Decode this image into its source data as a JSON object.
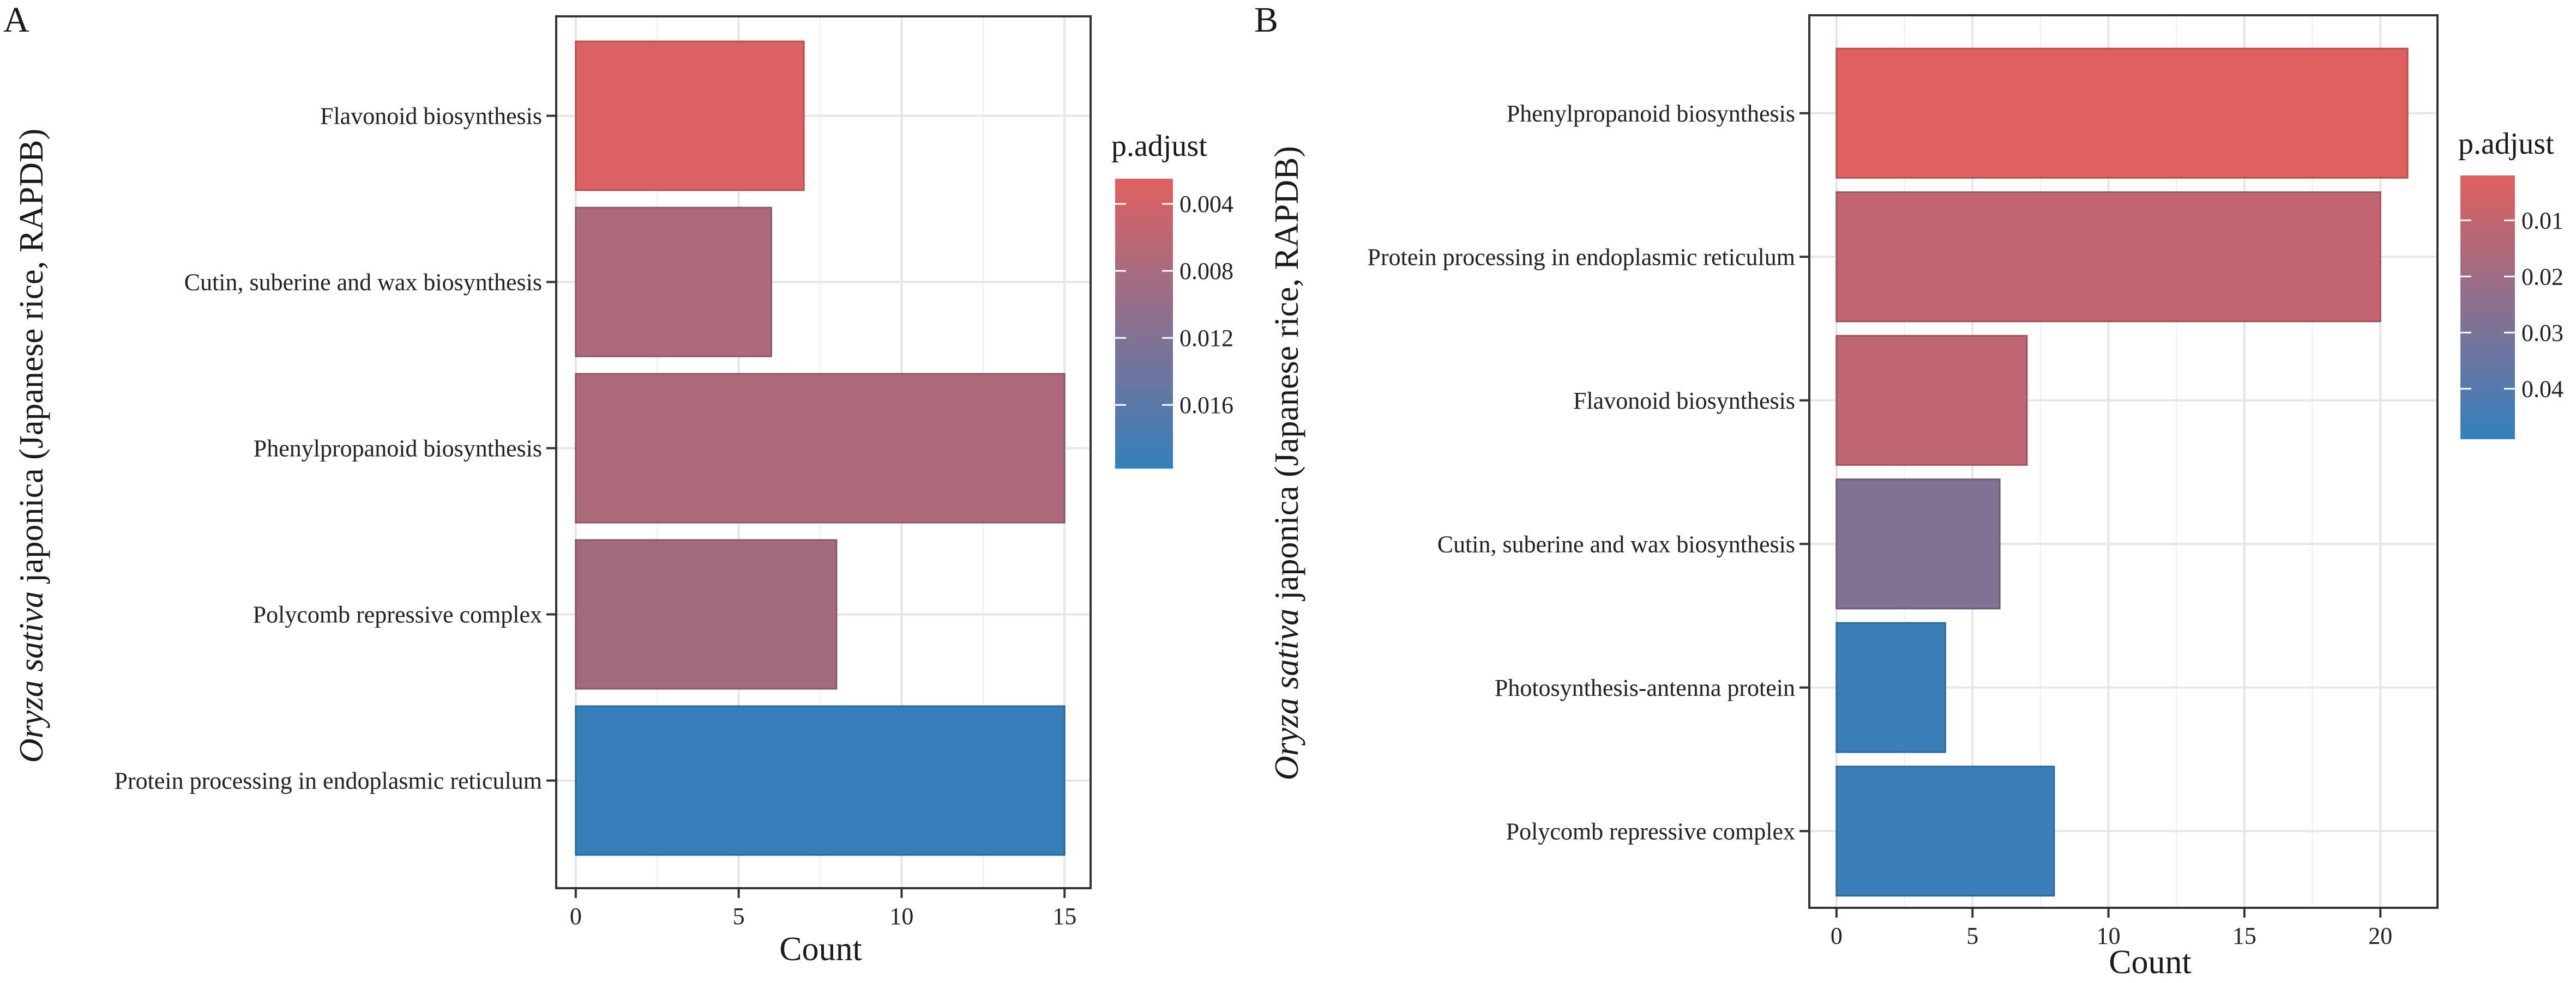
{
  "figure": {
    "panels": [
      "A",
      "B"
    ]
  },
  "chart_data": [
    {
      "panel": "A",
      "type": "bar",
      "orientation": "horizontal",
      "categories": [
        "Flavonoid biosynthesis",
        "Cutin, suberine and wax biosynthesis",
        "Phenylpropanoid biosynthesis",
        "Polycomb repressive complex",
        "Protein processing in endoplasmic reticulum"
      ],
      "values": [
        7,
        6,
        15,
        8,
        15
      ],
      "p_adjust": [
        0.003,
        0.0075,
        0.0075,
        0.0085,
        0.0195
      ],
      "xlabel": "Count",
      "ylabel": "Oryza sativa japonica (Japanese rice, RAPDB)",
      "ylabel_italic": "Oryza sativa",
      "ylabel_rest": " japonica (Japanese rice, RAPDB)",
      "xlim": [
        -0.6,
        15.8
      ],
      "xticks": [
        0,
        5,
        10,
        15
      ],
      "grid": true,
      "legend": {
        "title": "p.adjust",
        "range": [
          0.0025,
          0.0198
        ],
        "ticks": [
          "0.004",
          "0.008",
          "0.012",
          "0.016"
        ],
        "tick_values": [
          0.004,
          0.008,
          0.012,
          0.016
        ],
        "low_color": "#e06060",
        "high_color": "#3380bd",
        "placement": "right"
      }
    },
    {
      "panel": "B",
      "type": "bar",
      "orientation": "horizontal",
      "categories": [
        "Phenylpropanoid biosynthesis",
        "Protein processing in endoplasmic reticulum",
        "Flavonoid biosynthesis",
        "Cutin, suberine and wax biosynthesis",
        "Photosynthesis-antenna protein",
        "Polycomb repressive complex"
      ],
      "values": [
        21,
        20,
        7,
        6,
        4,
        8
      ],
      "p_adjust": [
        0.002,
        0.01,
        0.011,
        0.028,
        0.047,
        0.047
      ],
      "xlabel": "Count",
      "ylabel": "Oryza sativa japonica (Japanese rice, RAPDB)",
      "ylabel_italic": "Oryza sativa",
      "ylabel_rest": " japonica (Japanese rice, RAPDB)",
      "xlim": [
        -1,
        22.1
      ],
      "xticks": [
        0,
        5,
        10,
        15,
        20
      ],
      "grid": true,
      "legend": {
        "title": "p.adjust",
        "range": [
          0.002,
          0.049
        ],
        "ticks": [
          "0.01",
          "0.02",
          "0.03",
          "0.04"
        ],
        "tick_values": [
          0.01,
          0.02,
          0.03,
          0.04
        ],
        "low_color": "#e06060",
        "high_color": "#3380bd",
        "placement": "right"
      }
    }
  ]
}
